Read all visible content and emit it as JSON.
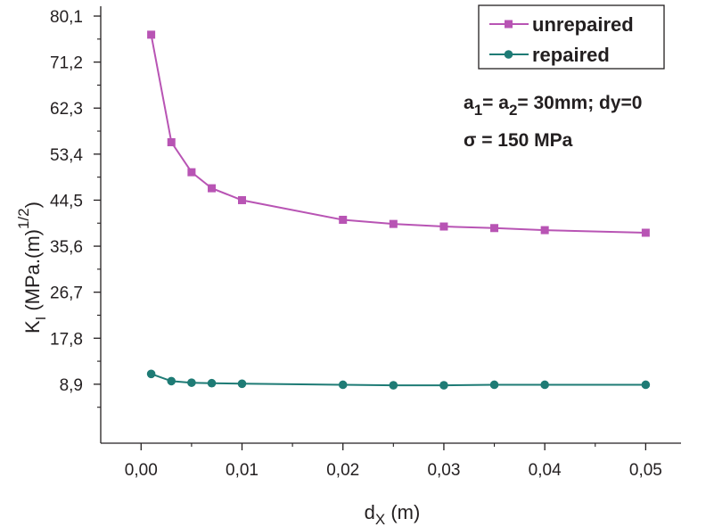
{
  "chart_data": {
    "type": "line",
    "xlabel_main": "d",
    "xlabel_sub": "X",
    "xlabel_unit": "(m)",
    "ylabel_main": "K",
    "ylabel_sub": "I",
    "ylabel_unit": "(MPa.(m)",
    "ylabel_sup": "1/2",
    "ylabel_close": ")",
    "xlim": [
      -0.004,
      0.0535
    ],
    "ylim": [
      -2.5,
      82
    ],
    "xticks": [
      0.0,
      0.01,
      0.02,
      0.03,
      0.04,
      0.05
    ],
    "xtick_labels": [
      "0,00",
      "0,01",
      "0,02",
      "0,03",
      "0,04",
      "0,05"
    ],
    "yticks": [
      8.9,
      17.8,
      26.7,
      35.6,
      44.5,
      53.4,
      62.3,
      71.2,
      80.1
    ],
    "ytick_labels": [
      "8,9",
      "17,8",
      "26,7",
      "35,6",
      "44,5",
      "53,4",
      "62,3",
      "71,2",
      "80,1"
    ],
    "x": [
      0.001,
      0.003,
      0.005,
      0.007,
      0.01,
      0.02,
      0.025,
      0.03,
      0.035,
      0.04,
      0.05
    ],
    "series": [
      {
        "name": "unrepaired",
        "marker": "square",
        "color": "#b854b4",
        "values": [
          76.5,
          55.7,
          49.9,
          46.8,
          44.5,
          40.7,
          39.9,
          39.4,
          39.1,
          38.7,
          38.2
        ]
      },
      {
        "name": "repaired",
        "marker": "circle",
        "color": "#1e7b75",
        "values": [
          10.9,
          9.5,
          9.2,
          9.1,
          9.0,
          8.8,
          8.7,
          8.7,
          8.8,
          8.8,
          8.8
        ]
      }
    ],
    "legend_position": "top-right",
    "annotations": {
      "line1": {
        "a": "a",
        "sub1": "1",
        "eq1": "= a",
        "sub2": "2",
        "rest": "= 30mm;  dy=0"
      },
      "line2": "σ = 150 MPa"
    },
    "grid": false
  }
}
